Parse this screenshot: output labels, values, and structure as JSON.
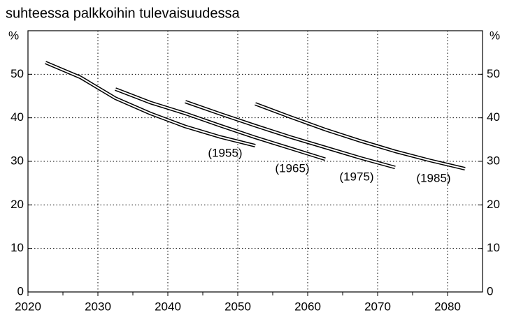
{
  "chart_data": {
    "type": "line",
    "title": "suhteessa palkkoihin tulevaisuudessa",
    "y_label": "%",
    "y2_label": "%",
    "xlim": [
      2020,
      2085
    ],
    "xticks": [
      2020,
      2030,
      2040,
      2050,
      2060,
      2070,
      2080
    ],
    "xminorticks": [
      2025,
      2035,
      2045,
      2055,
      2065,
      2075
    ],
    "ylim": [
      0,
      60
    ],
    "yticks": [
      0,
      10,
      20,
      30,
      40,
      50
    ],
    "y2lim": [
      0,
      60
    ],
    "y2ticks": [
      0,
      10,
      20,
      30,
      40,
      50
    ],
    "grid": true,
    "series": [
      {
        "name": "(1955)",
        "color": "#000000",
        "x": [
          2022.5,
          2027.5,
          2032.5,
          2037.5,
          2042.5,
          2047.5,
          2052.5
        ],
        "values": [
          52.7,
          49.3,
          44.5,
          41.0,
          38.0,
          35.6,
          33.6
        ]
      },
      {
        "name": "(1965)",
        "color": "#000000",
        "x": [
          2032.5,
          2037.5,
          2042.5,
          2047.5,
          2052.5,
          2057.5,
          2062.5
        ],
        "values": [
          46.6,
          43.5,
          41.0,
          38.2,
          35.5,
          33.0,
          30.5
        ]
      },
      {
        "name": "(1975)",
        "color": "#000000",
        "x": [
          2042.5,
          2047.5,
          2052.5,
          2057.5,
          2062.5,
          2067.5,
          2072.5
        ],
        "values": [
          43.7,
          40.9,
          38.2,
          35.6,
          33.2,
          30.8,
          28.6
        ]
      },
      {
        "name": "(1985)",
        "color": "#000000",
        "x": [
          2052.5,
          2057.5,
          2062.5,
          2067.5,
          2072.5,
          2077.5,
          2082.5
        ],
        "values": [
          43.2,
          40.2,
          37.3,
          34.7,
          32.3,
          30.2,
          28.3
        ]
      }
    ]
  }
}
